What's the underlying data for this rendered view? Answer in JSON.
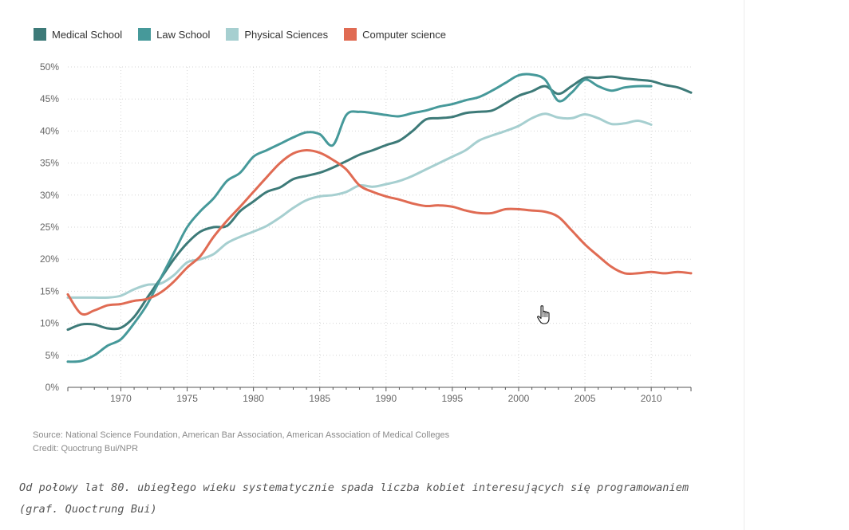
{
  "chart_data": {
    "type": "line",
    "title": "",
    "xlabel": "",
    "ylabel": "",
    "xlim": [
      1966,
      2013
    ],
    "ylim": [
      0,
      50
    ],
    "x_ticks": [
      "1970",
      "1975",
      "1980",
      "1985",
      "1990",
      "1995",
      "2000",
      "2005",
      "2010"
    ],
    "y_ticks": [
      "0%",
      "5%",
      "10%",
      "15%",
      "20%",
      "25%",
      "30%",
      "35%",
      "40%",
      "45%",
      "50%"
    ],
    "grid": true,
    "legend_position": "top-left",
    "series": [
      {
        "name": "Medical School",
        "color": "#3d7a78",
        "x": [
          1966,
          1967,
          1968,
          1969,
          1970,
          1971,
          1972,
          1973,
          1974,
          1975,
          1976,
          1977,
          1978,
          1979,
          1980,
          1981,
          1982,
          1983,
          1984,
          1985,
          1986,
          1987,
          1988,
          1989,
          1990,
          1991,
          1992,
          1993,
          1994,
          1995,
          1996,
          1997,
          1998,
          1999,
          2000,
          2001,
          2002,
          2003,
          2004,
          2005,
          2006,
          2007,
          2008,
          2009,
          2010,
          2011,
          2012,
          2013
        ],
        "values": [
          9.0,
          9.8,
          9.8,
          9.2,
          9.3,
          11.0,
          14.0,
          17.0,
          20.0,
          22.5,
          24.3,
          25.0,
          25.2,
          27.5,
          29.0,
          30.5,
          31.2,
          32.5,
          33.0,
          33.5,
          34.3,
          35.3,
          36.3,
          37.0,
          37.8,
          38.5,
          40.0,
          41.8,
          42.0,
          42.2,
          42.8,
          43.0,
          43.2,
          44.3,
          45.5,
          46.2,
          47.0,
          45.8,
          47.0,
          48.3,
          48.3,
          48.5,
          48.2,
          48.0,
          47.8,
          47.2,
          46.8,
          46.0
        ]
      },
      {
        "name": "Law School",
        "color": "#46999a",
        "x": [
          1966,
          1967,
          1968,
          1969,
          1970,
          1971,
          1972,
          1973,
          1974,
          1975,
          1976,
          1977,
          1978,
          1979,
          1980,
          1981,
          1982,
          1983,
          1984,
          1985,
          1986,
          1987,
          1988,
          1989,
          1990,
          1991,
          1992,
          1993,
          1994,
          1995,
          1996,
          1997,
          1998,
          1999,
          2000,
          2001,
          2002,
          2003,
          2004,
          2005,
          2006,
          2007,
          2008,
          2009,
          2010
        ],
        "values": [
          4.0,
          4.1,
          5.0,
          6.5,
          7.5,
          10.0,
          13.0,
          17.0,
          21.0,
          25.0,
          27.5,
          29.5,
          32.2,
          33.5,
          36.0,
          37.0,
          38.0,
          39.0,
          39.8,
          39.5,
          37.8,
          42.5,
          43.0,
          42.8,
          42.5,
          42.3,
          42.8,
          43.2,
          43.8,
          44.2,
          44.8,
          45.3,
          46.3,
          47.5,
          48.7,
          48.8,
          48.0,
          44.7,
          46.0,
          48.0,
          47.0,
          46.3,
          46.8,
          47.0,
          47.0
        ]
      },
      {
        "name": "Physical Sciences",
        "color": "#a6cfd0",
        "x": [
          1966,
          1967,
          1968,
          1969,
          1970,
          1971,
          1972,
          1973,
          1974,
          1975,
          1976,
          1977,
          1978,
          1979,
          1980,
          1981,
          1982,
          1983,
          1984,
          1985,
          1986,
          1987,
          1988,
          1989,
          1990,
          1991,
          1992,
          1993,
          1994,
          1995,
          1996,
          1997,
          1998,
          1999,
          2000,
          2001,
          2002,
          2003,
          2004,
          2005,
          2006,
          2007,
          2008,
          2009,
          2010
        ],
        "values": [
          14.0,
          14.0,
          14.0,
          14.0,
          14.3,
          15.3,
          16.0,
          16.2,
          17.5,
          19.5,
          20.0,
          20.8,
          22.5,
          23.5,
          24.3,
          25.2,
          26.5,
          28.0,
          29.2,
          29.8,
          30.0,
          30.5,
          31.5,
          31.3,
          31.7,
          32.2,
          33.0,
          34.0,
          35.0,
          36.0,
          37.0,
          38.5,
          39.3,
          40.0,
          40.8,
          42.0,
          42.7,
          42.1,
          42.0,
          42.6,
          42.0,
          41.1,
          41.2,
          41.6,
          41.0
        ]
      },
      {
        "name": "Computer science",
        "color": "#e06b53",
        "x": [
          1966,
          1967,
          1968,
          1969,
          1970,
          1971,
          1972,
          1973,
          1974,
          1975,
          1976,
          1977,
          1978,
          1979,
          1980,
          1981,
          1982,
          1983,
          1984,
          1985,
          1986,
          1987,
          1988,
          1989,
          1990,
          1991,
          1992,
          1993,
          1994,
          1995,
          1996,
          1997,
          1998,
          1999,
          2000,
          2001,
          2002,
          2003,
          2004,
          2005,
          2006,
          2007,
          2008,
          2009,
          2010,
          2011,
          2012,
          2013
        ],
        "values": [
          14.5,
          11.5,
          12.0,
          12.8,
          13.0,
          13.5,
          13.8,
          14.8,
          16.5,
          18.7,
          20.5,
          23.5,
          26.0,
          28.2,
          30.5,
          32.8,
          35.0,
          36.5,
          37.0,
          36.6,
          35.5,
          34.0,
          31.5,
          30.5,
          29.8,
          29.3,
          28.7,
          28.3,
          28.4,
          28.2,
          27.6,
          27.2,
          27.2,
          27.8,
          27.8,
          27.6,
          27.4,
          26.6,
          24.5,
          22.3,
          20.5,
          18.8,
          17.8,
          17.8,
          18.0,
          17.8,
          18.0,
          17.8
        ]
      }
    ]
  },
  "source_text": "Source: National Science Foundation, American Bar Association, American Association of Medical Colleges",
  "credit_text": "Credit: Quoctrung Bui/NPR",
  "caption_line1": "Od połowy lat 80. ubiegłego wieku systematycznie spada liczba kobiet interesujących się programowaniem",
  "caption_line2": "(graf. Quoctrung Bui)"
}
